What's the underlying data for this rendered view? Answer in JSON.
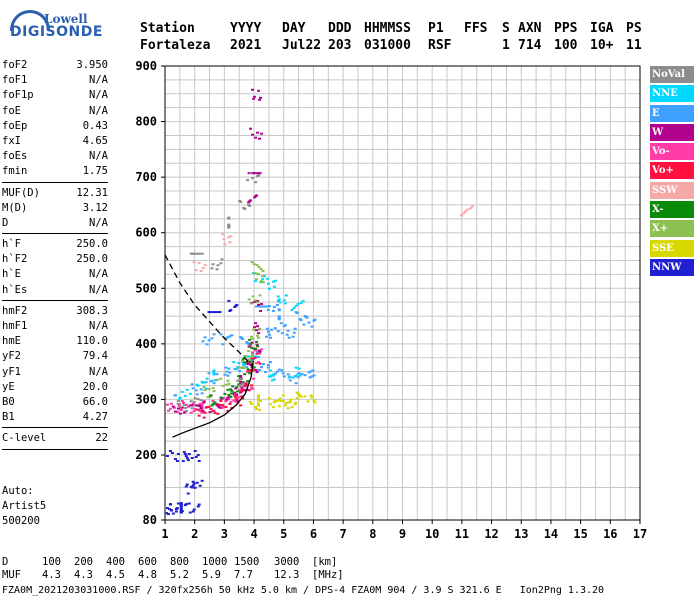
{
  "logo": {
    "line1": "Lowell",
    "line2": "DIGISONDE"
  },
  "header": {
    "labels": [
      "Station",
      "YYYY",
      "DAY",
      "DDD",
      "HHMMSS",
      "P1",
      "FFS",
      "S",
      "AXN",
      "PPS",
      "IGA",
      "PS"
    ],
    "values": [
      "Fortaleza",
      "2021",
      "Jul22",
      "203",
      "031000",
      "RSF",
      "",
      "1",
      "714",
      "100",
      "10+",
      "11"
    ]
  },
  "params": [
    {
      "label": "foF2",
      "value": "3.950"
    },
    {
      "label": "foF1",
      "value": "N/A"
    },
    {
      "label": "foF1p",
      "value": "N/A"
    },
    {
      "label": "foE",
      "value": "N/A"
    },
    {
      "label": "foEp",
      "value": "0.43"
    },
    {
      "label": "fxI",
      "value": "4.65"
    },
    {
      "label": "foEs",
      "value": "N/A"
    },
    {
      "label": "fmin",
      "value": "1.75"
    },
    {
      "sep": true
    },
    {
      "label": "MUF(D)",
      "value": "12.31"
    },
    {
      "label": "M(D)",
      "value": "3.12"
    },
    {
      "label": "D",
      "value": "N/A"
    },
    {
      "sep": true
    },
    {
      "label": "h`F",
      "value": "250.0"
    },
    {
      "label": "h`F2",
      "value": "250.0"
    },
    {
      "label": "h`E",
      "value": "N/A"
    },
    {
      "label": "h`Es",
      "value": "N/A"
    },
    {
      "sep": true
    },
    {
      "label": "hmF2",
      "value": "308.3"
    },
    {
      "label": "hmF1",
      "value": "N/A"
    },
    {
      "label": "hmE",
      "value": "110.0"
    },
    {
      "label": "yF2",
      "value": "79.4"
    },
    {
      "label": "yF1",
      "value": "N/A"
    },
    {
      "label": "yE",
      "value": "20.0"
    },
    {
      "label": "B0",
      "value": "66.0"
    },
    {
      "label": "B1",
      "value": "4.27"
    },
    {
      "sep": true
    },
    {
      "label": "C-level",
      "value": "22"
    },
    {
      "sep": true
    }
  ],
  "autoscaling": {
    "line1": "Auto:",
    "line2": "Artist5",
    "line3": "500200"
  },
  "legend": [
    {
      "label": "NoVal",
      "color": "#8c8c8c"
    },
    {
      "label": "NNE",
      "color": "#00d8ff"
    },
    {
      "label": "E",
      "color": "#3ea0ff"
    },
    {
      "label": "W",
      "color": "#b0008c"
    },
    {
      "label": "Vo-",
      "color": "#ff3ca8"
    },
    {
      "label": "Vo+",
      "color": "#ff1040"
    },
    {
      "label": "SSW",
      "color": "#f4a8a8"
    },
    {
      "label": "X-",
      "color": "#0a8a0a"
    },
    {
      "label": "X+",
      "color": "#8cc050"
    },
    {
      "label": "SSE",
      "color": "#d8d800"
    },
    {
      "label": "NNW",
      "color": "#2020d0"
    }
  ],
  "footer": {
    "dist_label": "D",
    "dist_values": [
      "100",
      "200",
      "400",
      "600",
      "800",
      "1000",
      "1500",
      "3000",
      "[km]"
    ],
    "muf_label": "MUF",
    "muf_values": [
      "4.3",
      "4.3",
      "4.5",
      "4.8",
      "5.2",
      "5.9",
      "7.7",
      "12.3",
      "[MHz]"
    ],
    "info": "FZA0M_2021203031000.RSF / 320fx256h 50 kHz 5.0 km / DPS-4 FZA0M 904 / 3.9 S 321.6 E   Ion2Png 1.3.20"
  },
  "chart_data": {
    "type": "scatter",
    "xlim": [
      1,
      17
    ],
    "ylim": [
      80,
      900
    ],
    "x_ticks": [
      "1",
      "2",
      "3",
      "4",
      "5",
      "6",
      "7",
      "8",
      "9",
      "10",
      "11",
      "12",
      "13",
      "14",
      "15",
      "16",
      "17"
    ],
    "y_ticks": [
      "80",
      "200",
      "300",
      "400",
      "500",
      "600",
      "700",
      "800",
      "900"
    ],
    "y_tick_values": [
      80,
      200,
      300,
      400,
      500,
      600,
      700,
      800,
      900
    ],
    "grid": true,
    "series": [
      {
        "color": "#3ea0ff",
        "points": [
          [
            1.5,
            300
          ],
          [
            2.0,
            320
          ],
          [
            2.5,
            340
          ],
          [
            3.0,
            350
          ],
          [
            3.5,
            360
          ],
          [
            4.0,
            380
          ],
          [
            4.3,
            360
          ],
          [
            4.6,
            350
          ],
          [
            5.0,
            345
          ],
          [
            5.5,
            340
          ],
          [
            5.9,
            345
          ],
          [
            4.2,
            460
          ],
          [
            4.6,
            470
          ],
          [
            5.0,
            455
          ],
          [
            5.5,
            450
          ],
          [
            5.8,
            440
          ],
          [
            4.4,
            420
          ],
          [
            4.8,
            430
          ],
          [
            5.2,
            420
          ],
          [
            2.4,
            410
          ],
          [
            3.0,
            410
          ],
          [
            3.6,
            405
          ]
        ]
      },
      {
        "color": "#00d8ff",
        "points": [
          [
            1.6,
            310
          ],
          [
            2.2,
            330
          ],
          [
            2.8,
            345
          ],
          [
            3.4,
            360
          ],
          [
            3.8,
            370
          ],
          [
            4.5,
            345
          ],
          [
            5.3,
            350
          ],
          [
            4.9,
            480
          ],
          [
            5.4,
            470
          ],
          [
            4.1,
            520
          ],
          [
            4.5,
            510
          ]
        ]
      },
      {
        "color": "#ff3ca8",
        "points": [
          [
            1.2,
            285
          ],
          [
            1.5,
            290
          ],
          [
            1.8,
            285
          ],
          [
            2.1,
            290
          ],
          [
            2.4,
            285
          ],
          [
            2.7,
            290
          ],
          [
            3.0,
            295
          ],
          [
            3.3,
            300
          ],
          [
            3.6,
            310
          ],
          [
            3.8,
            330
          ],
          [
            3.9,
            360
          ],
          [
            4.0,
            390
          ]
        ]
      },
      {
        "color": "#b0008c",
        "points": [
          [
            1.4,
            280
          ],
          [
            1.9,
            282
          ],
          [
            2.3,
            288
          ],
          [
            2.8,
            296
          ],
          [
            3.2,
            305
          ],
          [
            3.5,
            318
          ],
          [
            3.7,
            335
          ],
          [
            3.85,
            360
          ],
          [
            3.95,
            395
          ],
          [
            4.0,
            430
          ],
          [
            4.0,
            470
          ],
          [
            3.9,
            660
          ],
          [
            3.95,
            700
          ],
          [
            4.0,
            780
          ],
          [
            4.0,
            850
          ]
        ]
      },
      {
        "color": "#ff1040",
        "points": [
          [
            2.2,
            278
          ],
          [
            2.6,
            283
          ],
          [
            3.0,
            290
          ],
          [
            3.4,
            300
          ],
          [
            3.7,
            320
          ],
          [
            3.85,
            345
          ],
          [
            3.95,
            375
          ]
        ]
      },
      {
        "color": "#0a8a0a",
        "points": [
          [
            2.5,
            300
          ],
          [
            3.0,
            310
          ],
          [
            3.3,
            320
          ],
          [
            3.6,
            340
          ],
          [
            3.75,
            365
          ],
          [
            3.9,
            400
          ]
        ]
      },
      {
        "color": "#8cc050",
        "points": [
          [
            2.4,
            315
          ],
          [
            2.9,
            330
          ],
          [
            3.5,
            350
          ],
          [
            3.7,
            380
          ],
          [
            4.0,
            420
          ],
          [
            3.95,
            480
          ],
          [
            4.05,
            540
          ],
          [
            4.1,
            520
          ]
        ]
      },
      {
        "color": "#d8d800",
        "points": [
          [
            4.0,
            290
          ],
          [
            4.3,
            300
          ],
          [
            4.6,
            295
          ],
          [
            5.0,
            300
          ],
          [
            5.4,
            305
          ],
          [
            5.8,
            300
          ],
          [
            4.8,
            290
          ],
          [
            5.2,
            295
          ]
        ]
      },
      {
        "color": "#2020d0",
        "points": [
          [
            1.1,
            102
          ],
          [
            1.3,
            103
          ],
          [
            1.5,
            102
          ],
          [
            1.7,
            104
          ],
          [
            1.9,
            103
          ],
          [
            1.2,
            200
          ],
          [
            1.6,
            198
          ],
          [
            1.9,
            200
          ],
          [
            1.8,
            140
          ],
          [
            2.0,
            145
          ],
          [
            2.6,
            450
          ],
          [
            3.2,
            470
          ]
        ]
      },
      {
        "color": "#8c8c8c",
        "points": [
          [
            1.5,
            290
          ],
          [
            2.0,
            295
          ],
          [
            3.5,
            330
          ],
          [
            2.0,
            555
          ],
          [
            2.7,
            545
          ],
          [
            3.3,
            620
          ],
          [
            3.6,
            650
          ],
          [
            3.9,
            700
          ]
        ]
      },
      {
        "color": "#f4a8a8",
        "points": [
          [
            11.1,
            640
          ],
          [
            2.1,
            540
          ],
          [
            3.0,
            590
          ]
        ]
      }
    ],
    "trace_solid": [
      [
        1.25,
        232
      ],
      [
        1.6,
        240
      ],
      [
        2.0,
        248
      ],
      [
        2.5,
        258
      ],
      [
        3.0,
        272
      ],
      [
        3.4,
        290
      ],
      [
        3.7,
        310
      ],
      [
        3.9,
        340
      ],
      [
        3.97,
        370
      ]
    ],
    "trace_dashed": [
      [
        1.0,
        560
      ],
      [
        1.5,
        510
      ],
      [
        2.0,
        470
      ],
      [
        2.5,
        440
      ],
      [
        3.0,
        410
      ],
      [
        3.5,
        385
      ],
      [
        3.95,
        360
      ]
    ]
  }
}
